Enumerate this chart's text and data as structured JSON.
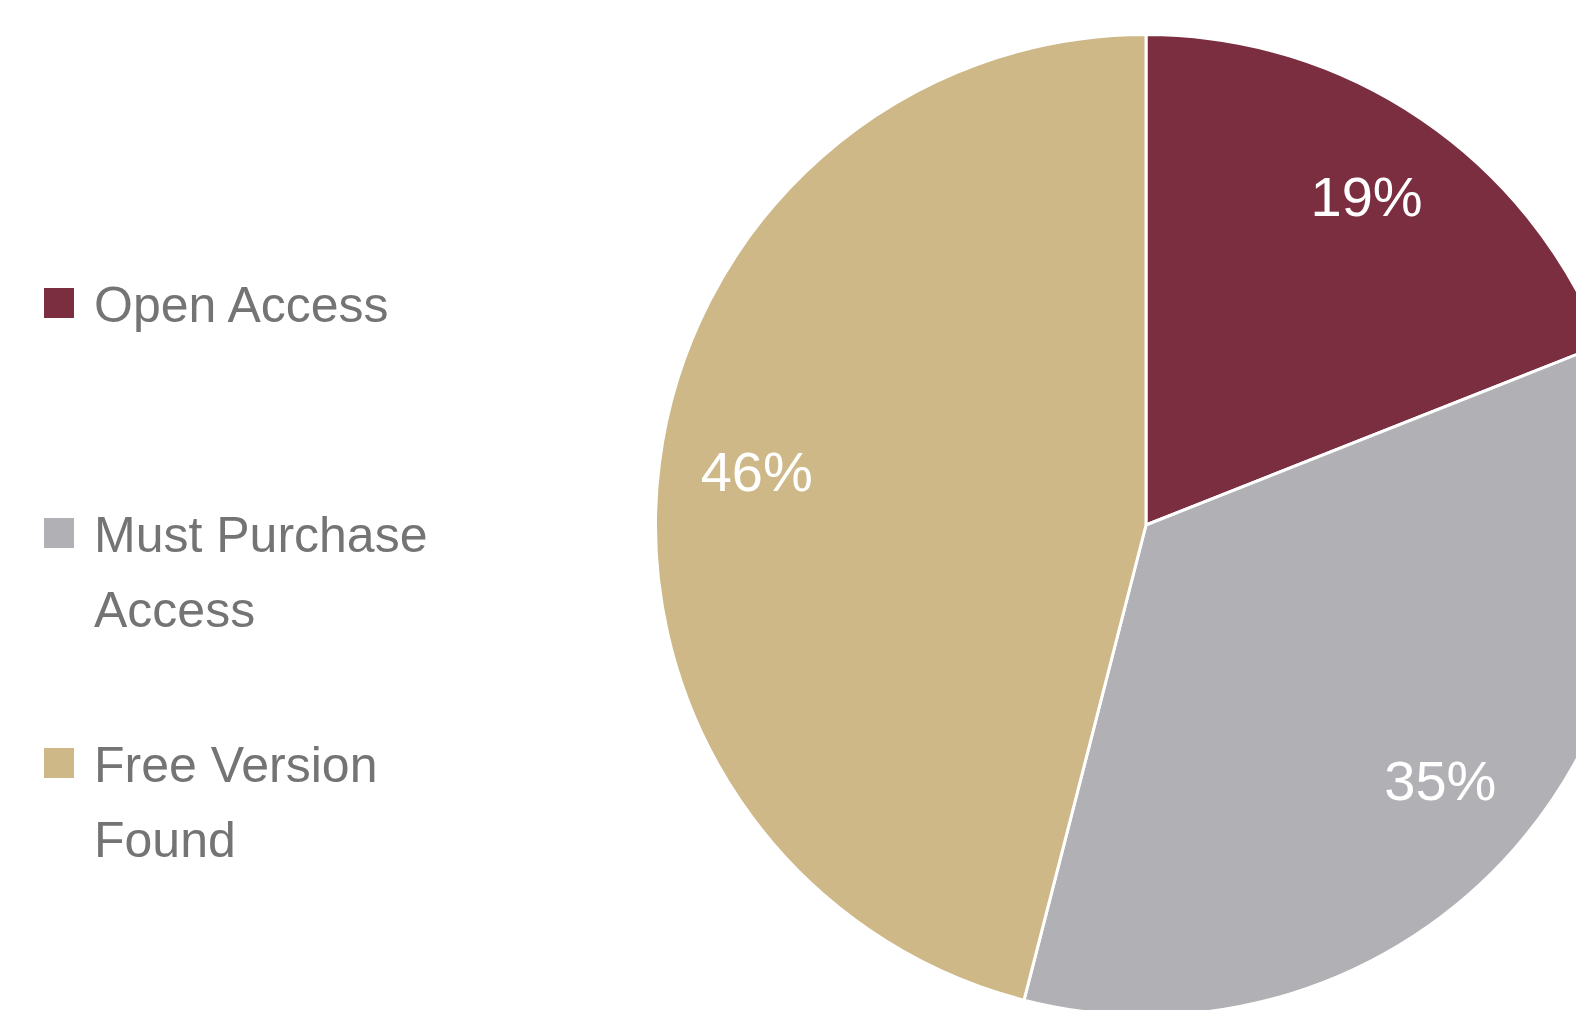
{
  "chart_data": {
    "type": "pie",
    "categories": [
      "Open Access",
      "Must Purchase Access",
      "Free Version Found"
    ],
    "values": [
      19,
      35,
      46
    ],
    "colors": [
      "#7a2e40",
      "#b1b1b5",
      "#ceb888"
    ],
    "value_labels": [
      "19%",
      "35%",
      "46%"
    ],
    "legend": "left"
  }
}
